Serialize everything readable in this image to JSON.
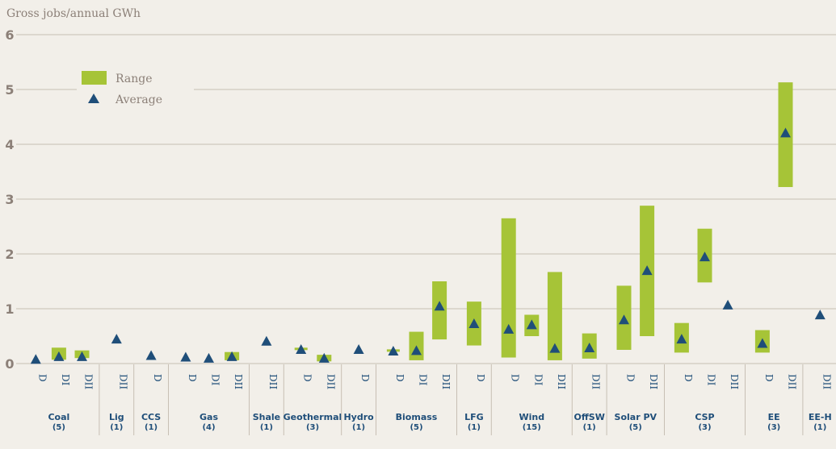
{
  "colors": {
    "background": "#f2efe9",
    "range": "#a6c437",
    "average": "#1f4e79",
    "grid": "#c7bfb4",
    "axis_text": "#8c8078"
  },
  "chart_data": {
    "type": "range-bar",
    "ylabel": "Gross jobs/annual GWh",
    "ylim": [
      0,
      6
    ],
    "yticks": [
      "0",
      "1",
      "2",
      "3",
      "4",
      "5",
      "6"
    ],
    "legend": {
      "range_label": "Range",
      "average_label": "Average",
      "position": "top-left"
    },
    "groups": [
      {
        "name": "Coal",
        "count": "(5)",
        "categories": [
          {
            "label": "D",
            "low": null,
            "high": null,
            "avg": 0.07
          },
          {
            "label": "DI",
            "low": 0.07,
            "high": 0.29,
            "avg": 0.12
          },
          {
            "label": "DII",
            "low": 0.1,
            "high": 0.24,
            "avg": 0.12
          }
        ]
      },
      {
        "name": "Lig",
        "count": "(1)",
        "categories": [
          {
            "label": "DII",
            "low": null,
            "high": null,
            "avg": 0.44
          }
        ]
      },
      {
        "name": "CCS",
        "count": "(1)",
        "categories": [
          {
            "label": "D",
            "low": null,
            "high": null,
            "avg": 0.14
          }
        ]
      },
      {
        "name": "Gas",
        "count": "(4)",
        "categories": [
          {
            "label": "D",
            "low": null,
            "high": null,
            "avg": 0.11
          },
          {
            "label": "DI",
            "low": null,
            "high": null,
            "avg": 0.09
          },
          {
            "label": "DII",
            "low": 0.06,
            "high": 0.21,
            "avg": 0.12
          }
        ]
      },
      {
        "name": "Shale",
        "count": "(1)",
        "categories": [
          {
            "label": "DII",
            "low": null,
            "high": null,
            "avg": 0.4
          }
        ]
      },
      {
        "name": "Geothermal",
        "count": "(3)",
        "categories": [
          {
            "label": "D",
            "low": 0.26,
            "high": 0.26,
            "avg": 0.25
          },
          {
            "label": "DII",
            "low": 0.04,
            "high": 0.16,
            "avg": 0.09
          }
        ]
      },
      {
        "name": "Hydro",
        "count": "(1)",
        "categories": [
          {
            "label": "D",
            "low": null,
            "high": null,
            "avg": 0.25
          }
        ]
      },
      {
        "name": "Biomass",
        "count": "(5)",
        "categories": [
          {
            "label": "D",
            "low": 0.23,
            "high": 0.23,
            "avg": 0.22
          },
          {
            "label": "DI",
            "low": 0.06,
            "high": 0.58,
            "avg": 0.23
          },
          {
            "label": "DII",
            "low": 0.44,
            "high": 1.5,
            "avg": 1.04
          }
        ]
      },
      {
        "name": "LFG",
        "count": "(1)",
        "categories": [
          {
            "label": "D",
            "low": 0.33,
            "high": 1.13,
            "avg": 0.72
          }
        ]
      },
      {
        "name": "Wind",
        "count": "(15)",
        "categories": [
          {
            "label": "D",
            "low": 0.11,
            "high": 2.65,
            "avg": 0.62
          },
          {
            "label": "DI",
            "low": 0.5,
            "high": 0.89,
            "avg": 0.7
          },
          {
            "label": "DII",
            "low": 0.06,
            "high": 1.67,
            "avg": 0.27
          }
        ]
      },
      {
        "name": "OffSW",
        "count": "(1)",
        "categories": [
          {
            "label": "DII",
            "low": 0.09,
            "high": 0.55,
            "avg": 0.28
          }
        ]
      },
      {
        "name": "Solar PV",
        "count": "(5)",
        "categories": [
          {
            "label": "D",
            "low": 0.25,
            "high": 1.42,
            "avg": 0.79
          },
          {
            "label": "DII",
            "low": 0.5,
            "high": 2.88,
            "avg": 1.69
          }
        ]
      },
      {
        "name": "CSP",
        "count": "(3)",
        "categories": [
          {
            "label": "D",
            "low": 0.2,
            "high": 0.74,
            "avg": 0.44
          },
          {
            "label": "DI",
            "low": 1.48,
            "high": 2.46,
            "avg": 1.94
          },
          {
            "label": "DII",
            "low": null,
            "high": null,
            "avg": 1.06
          }
        ]
      },
      {
        "name": "EE",
        "count": "(3)",
        "categories": [
          {
            "label": "D",
            "low": 0.2,
            "high": 0.61,
            "avg": 0.36
          },
          {
            "label": "DII",
            "low": 3.22,
            "high": 5.13,
            "avg": 4.2
          }
        ]
      },
      {
        "name": "EE-H",
        "count": "(1)",
        "categories": [
          {
            "label": "DII",
            "low": null,
            "high": null,
            "avg": 0.88
          }
        ]
      }
    ]
  }
}
